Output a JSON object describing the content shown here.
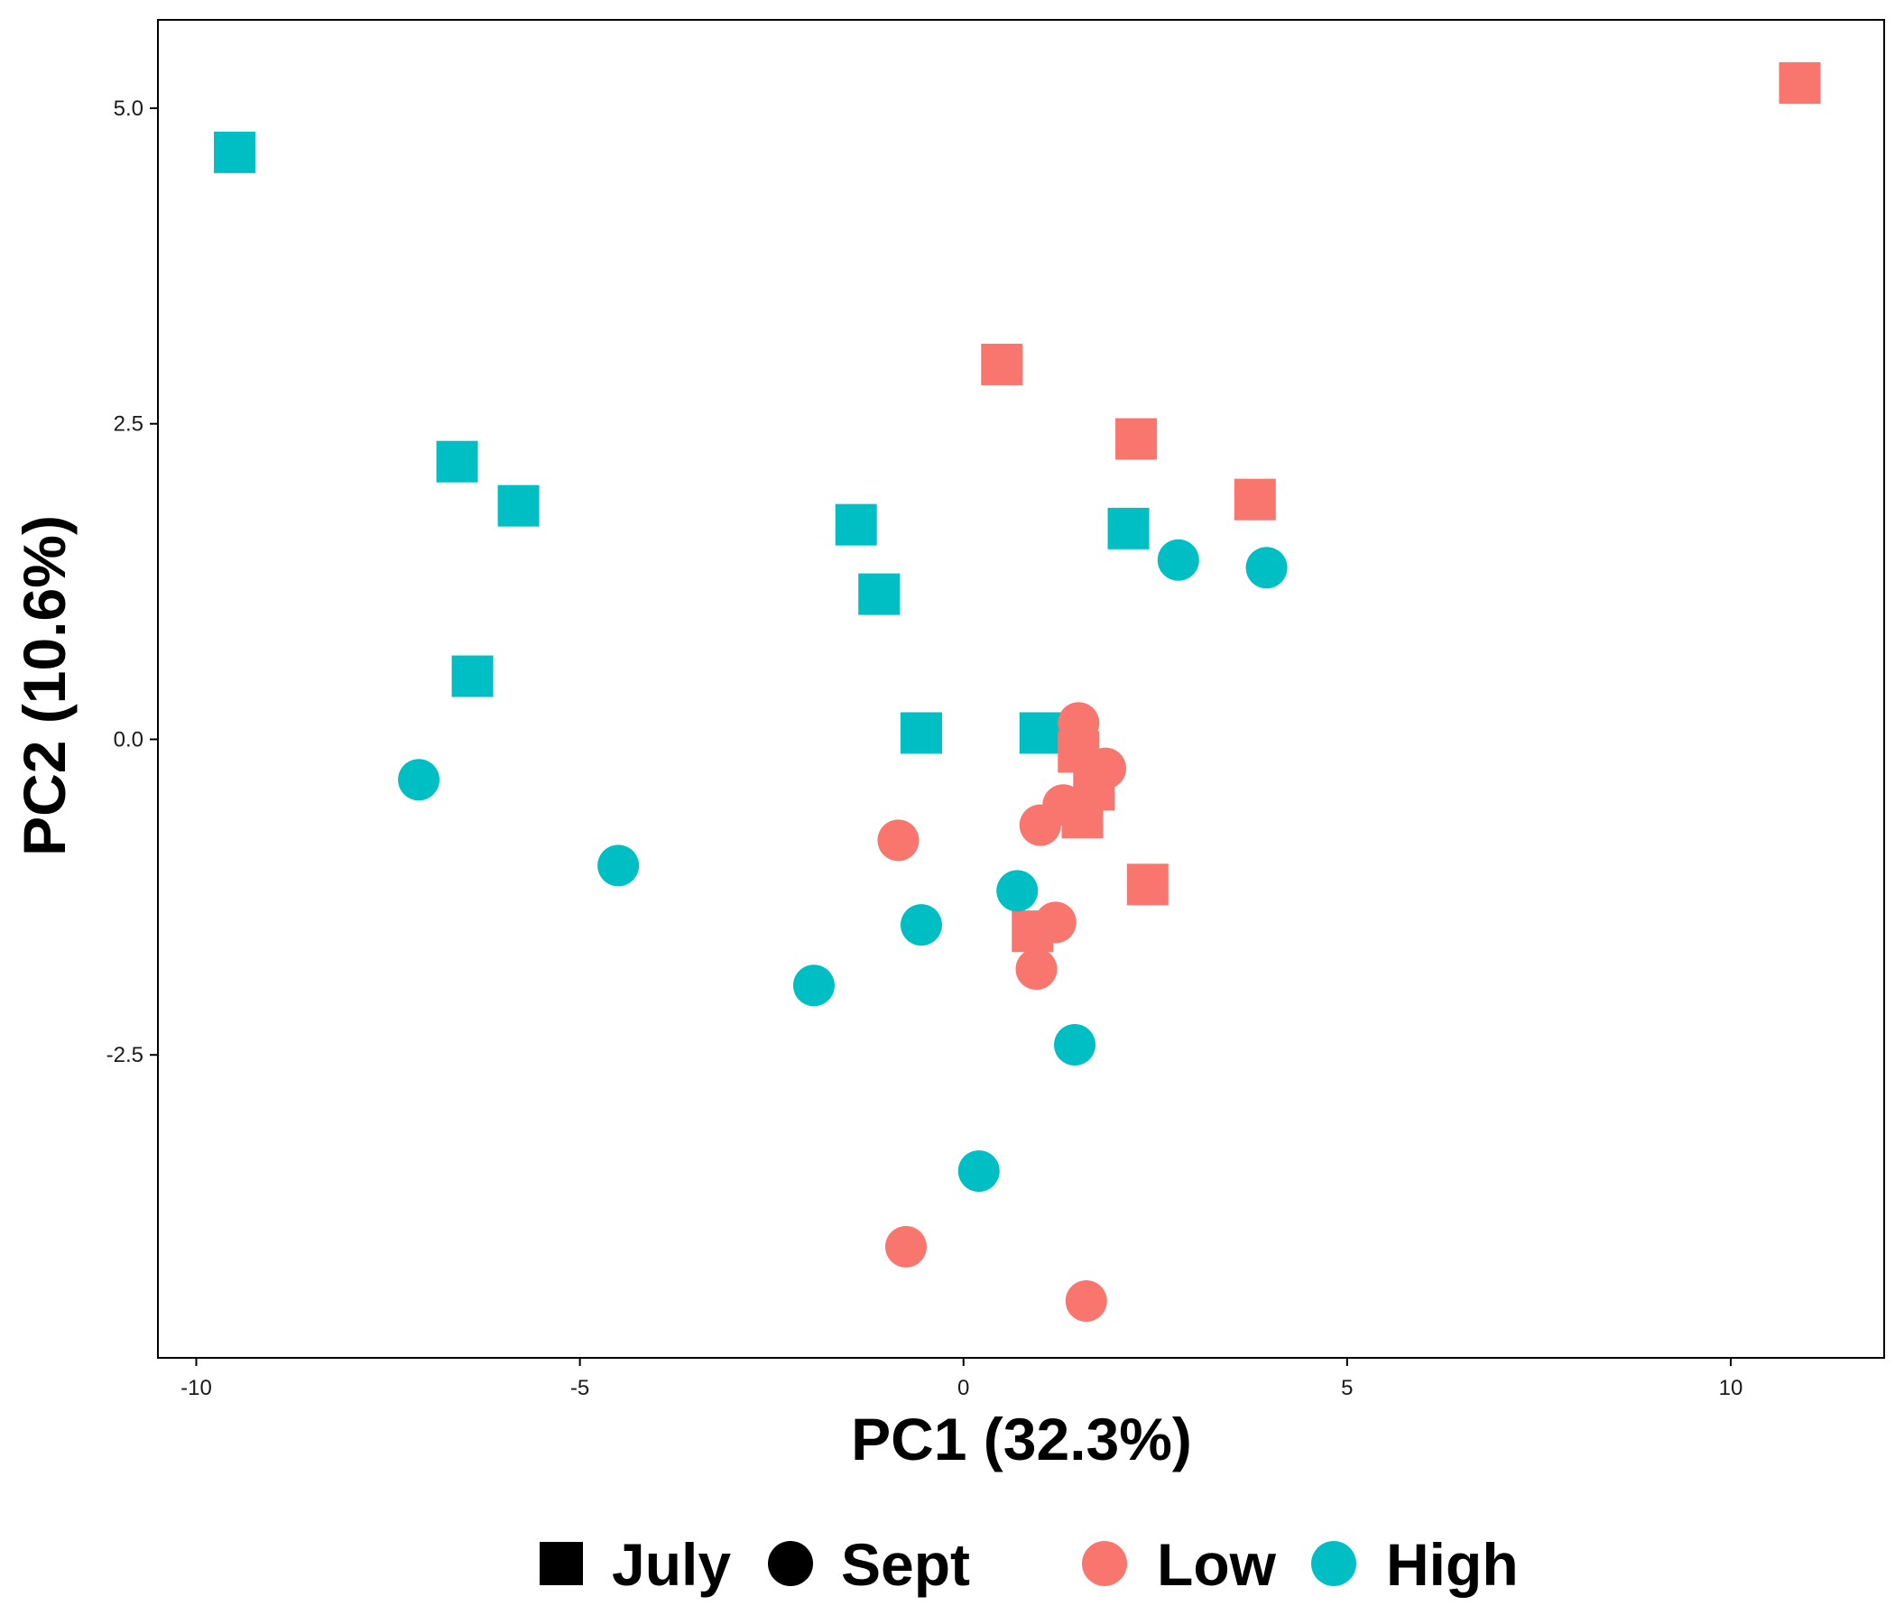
{
  "chart_data": {
    "type": "scatter",
    "title": "",
    "xlabel": "PC1 (32.3%)",
    "ylabel": "PC2 (10.6%)",
    "xlim": [
      -10.5,
      12
    ],
    "ylim": [
      -4.9,
      5.7
    ],
    "x_ticks": [
      -10,
      -5,
      0,
      5,
      10
    ],
    "x_tick_labels": [
      "-10",
      "-5",
      "0",
      "5",
      "10"
    ],
    "y_ticks": [
      5.0,
      2.5,
      0.0,
      -2.5
    ],
    "y_tick_labels": [
      "5.0",
      "2.5",
      "0.0",
      "-2.5"
    ],
    "grid": false,
    "legend_position": "bottom",
    "shape_legend": [
      {
        "label": "July",
        "shape": "square"
      },
      {
        "label": "Sept",
        "shape": "circle"
      }
    ],
    "color_legend": [
      {
        "label": "Low",
        "color": "#F8766D"
      },
      {
        "label": "High",
        "color": "#00BFC4"
      }
    ],
    "points": [
      {
        "x": -9.5,
        "y": 4.65,
        "month": "July",
        "group": "High"
      },
      {
        "x": -6.6,
        "y": 2.2,
        "month": "July",
        "group": "High"
      },
      {
        "x": -5.8,
        "y": 1.85,
        "month": "July",
        "group": "High"
      },
      {
        "x": -6.4,
        "y": 0.5,
        "month": "July",
        "group": "High"
      },
      {
        "x": -1.4,
        "y": 1.7,
        "month": "July",
        "group": "High"
      },
      {
        "x": -1.1,
        "y": 1.15,
        "month": "July",
        "group": "High"
      },
      {
        "x": -0.55,
        "y": 0.05,
        "month": "July",
        "group": "High"
      },
      {
        "x": 1.0,
        "y": 0.05,
        "month": "July",
        "group": "High"
      },
      {
        "x": 2.15,
        "y": 1.67,
        "month": "July",
        "group": "High"
      },
      {
        "x": 0.5,
        "y": 2.97,
        "month": "July",
        "group": "Low"
      },
      {
        "x": 2.25,
        "y": 2.38,
        "month": "July",
        "group": "Low"
      },
      {
        "x": 3.8,
        "y": 1.9,
        "month": "July",
        "group": "Low"
      },
      {
        "x": 10.9,
        "y": 5.2,
        "month": "July",
        "group": "Low"
      },
      {
        "x": 2.4,
        "y": -1.15,
        "month": "July",
        "group": "Low"
      },
      {
        "x": 1.5,
        "y": -0.1,
        "month": "July",
        "group": "Low"
      },
      {
        "x": 1.7,
        "y": -0.4,
        "month": "July",
        "group": "Low"
      },
      {
        "x": 1.55,
        "y": -0.62,
        "month": "July",
        "group": "Low"
      },
      {
        "x": 0.9,
        "y": -1.52,
        "month": "July",
        "group": "Low"
      },
      {
        "x": -7.1,
        "y": -0.32,
        "month": "Sept",
        "group": "High"
      },
      {
        "x": -4.5,
        "y": -1.0,
        "month": "Sept",
        "group": "High"
      },
      {
        "x": -1.95,
        "y": -1.95,
        "month": "Sept",
        "group": "High"
      },
      {
        "x": -0.55,
        "y": -1.47,
        "month": "Sept",
        "group": "High"
      },
      {
        "x": 0.7,
        "y": -1.2,
        "month": "Sept",
        "group": "High"
      },
      {
        "x": 1.45,
        "y": -2.42,
        "month": "Sept",
        "group": "High"
      },
      {
        "x": 0.2,
        "y": -3.42,
        "month": "Sept",
        "group": "High"
      },
      {
        "x": 2.8,
        "y": 1.42,
        "month": "Sept",
        "group": "High"
      },
      {
        "x": 3.95,
        "y": 1.36,
        "month": "Sept",
        "group": "High"
      },
      {
        "x": 1.5,
        "y": 0.13,
        "month": "Sept",
        "group": "Low"
      },
      {
        "x": 1.85,
        "y": -0.23,
        "month": "Sept",
        "group": "Low"
      },
      {
        "x": 1.3,
        "y": -0.52,
        "month": "Sept",
        "group": "Low"
      },
      {
        "x": 1.0,
        "y": -0.68,
        "month": "Sept",
        "group": "Low"
      },
      {
        "x": -0.85,
        "y": -0.8,
        "month": "Sept",
        "group": "Low"
      },
      {
        "x": 1.2,
        "y": -1.45,
        "month": "Sept",
        "group": "Low"
      },
      {
        "x": 0.95,
        "y": -1.82,
        "month": "Sept",
        "group": "Low"
      },
      {
        "x": -0.75,
        "y": -4.02,
        "month": "Sept",
        "group": "Low"
      },
      {
        "x": 1.6,
        "y": -4.45,
        "month": "Sept",
        "group": "Low"
      }
    ]
  }
}
